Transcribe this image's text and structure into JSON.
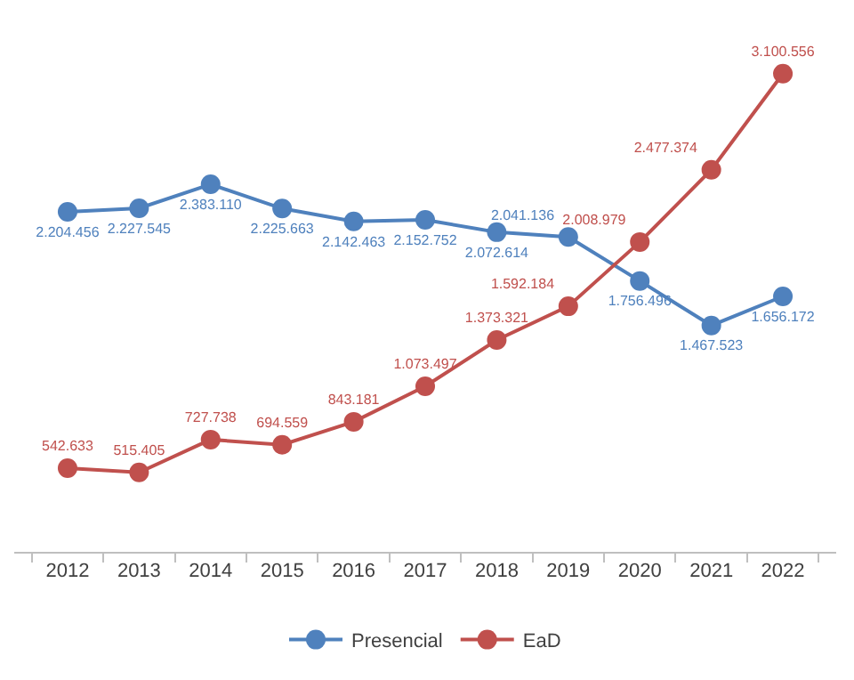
{
  "chart_data": {
    "type": "line",
    "categories": [
      "2012",
      "2013",
      "2014",
      "2015",
      "2016",
      "2017",
      "2018",
      "2019",
      "2020",
      "2021",
      "2022"
    ],
    "legend": "bottom",
    "marker": "circle",
    "series": [
      {
        "name": "Presencial",
        "color": "#4f81bd",
        "values": [
          2204456,
          2227545,
          2383110,
          2225663,
          2142463,
          2152752,
          2072614,
          2041136,
          1756496,
          1467523,
          1656172
        ],
        "value_labels": [
          "2.204.456",
          "2.227.545",
          "2.383.110",
          "2.225.663",
          "2.142.463",
          "2.152.752",
          "2.072.614",
          "2.041.136",
          "1.756.496",
          "1.467.523",
          "1.656.172"
        ]
      },
      {
        "name": "EaD",
        "color": "#c0504d",
        "values": [
          542633,
          515405,
          727738,
          694559,
          843181,
          1073497,
          1373321,
          1592184,
          2008979,
          2477374,
          3100556
        ],
        "value_labels": [
          "542.633",
          "515.405",
          "727.738",
          "694.559",
          "843.181",
          "1.073.497",
          "1.373.321",
          "1.592.184",
          "2.008.979",
          "2.477.374",
          "3.100.556"
        ]
      }
    ]
  }
}
